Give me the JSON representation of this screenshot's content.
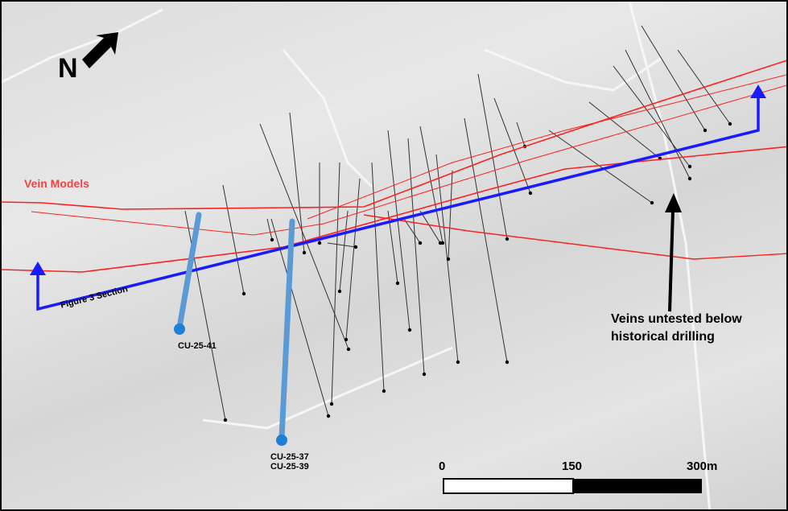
{
  "north_label": "N",
  "vein_models_label": "Vein Models",
  "section_label": "Figure 3 Section",
  "drill_holes": [
    {
      "id": "CU-25-41"
    },
    {
      "id": "CU-25-37"
    },
    {
      "id": "CU-25-39"
    }
  ],
  "annotation": {
    "line1": "Veins untested below",
    "line2": "historical drilling"
  },
  "scale_bar": {
    "ticks": [
      "0",
      "150",
      "300m"
    ],
    "max_m": 300
  },
  "colors": {
    "vein": "#ff2020",
    "section": "#1a1aff",
    "drill_hole": "#5b9bd5",
    "trace": "#333333"
  }
}
